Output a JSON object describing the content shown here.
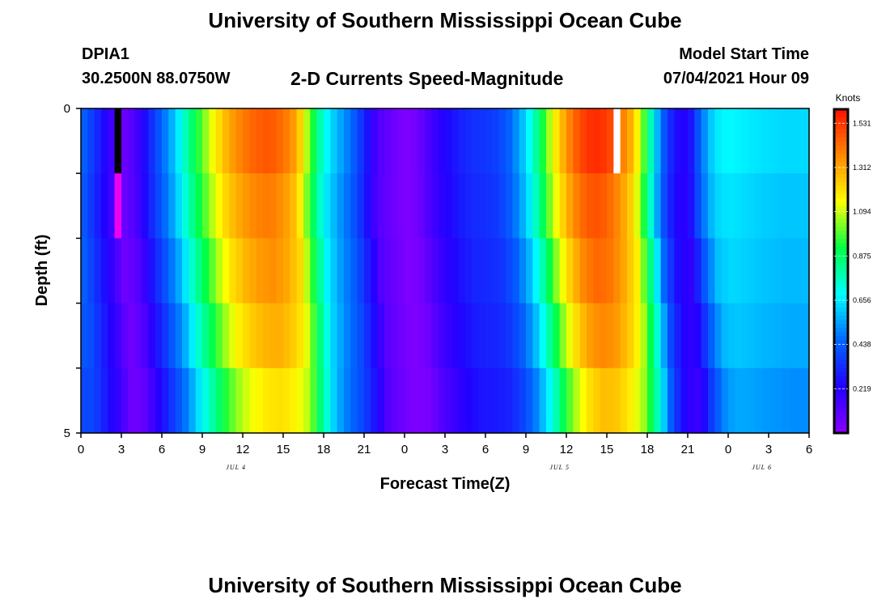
{
  "header": {
    "title": "University of Southern Mississippi Ocean Cube",
    "station": "DPIA1",
    "coordinates": "30.2500N  88.0750W",
    "subtitle": "2-D Currents Speed-Magnitude",
    "model_start_label": "Model Start Time",
    "model_start_value": "07/04/2021 Hour 09"
  },
  "footer": {
    "title": "University of Southern Mississippi Ocean Cube"
  },
  "chart_data": {
    "type": "heatmap",
    "title": "2-D Currents Speed-Magnitude",
    "xlabel": "Forecast Time(Z)",
    "ylabel": "Depth (ft)",
    "y_tick_labels": [
      "0",
      "5"
    ],
    "ylim": [
      0,
      5
    ],
    "xlim_hours": [
      0,
      54
    ],
    "x_tick_labels": [
      "0",
      "3",
      "6",
      "9",
      "12",
      "15",
      "18",
      "21",
      "0",
      "3",
      "6",
      "9",
      "12",
      "15",
      "18",
      "21",
      "0",
      "3",
      "6"
    ],
    "date_labels": [
      {
        "text": "JUL 4",
        "hour": 11.5
      },
      {
        "text": "JUL 5",
        "hour": 35.5
      },
      {
        "text": "JUL 6",
        "hour": 50.5
      }
    ],
    "colorbar": {
      "label": "Knots",
      "min": 0,
      "max": 1.6,
      "ticks": [
        "1.531",
        "1.312",
        "1.094",
        "0.875",
        "0.656",
        "0.438",
        "0.219"
      ],
      "tick_values": [
        1.531,
        1.312,
        1.094,
        0.875,
        0.656,
        0.438,
        0.219
      ]
    },
    "depth_layers": 5,
    "hours_per_column": 0.5,
    "column_count": 108,
    "speed_profile_knots": [
      [
        0,
        0.45
      ],
      [
        2,
        0.2
      ],
      [
        3,
        0.05
      ],
      [
        4,
        0.12
      ],
      [
        5,
        0.28
      ],
      [
        6,
        0.43
      ],
      [
        7,
        0.58
      ],
      [
        8,
        0.78
      ],
      [
        9,
        0.95
      ],
      [
        10,
        1.12
      ],
      [
        11,
        1.25
      ],
      [
        12,
        1.33
      ],
      [
        13,
        1.38
      ],
      [
        14,
        1.4
      ],
      [
        15,
        1.35
      ],
      [
        16,
        1.25
      ],
      [
        17,
        0.95
      ],
      [
        18,
        0.68
      ],
      [
        19,
        0.55
      ],
      [
        20,
        0.45
      ],
      [
        21,
        0.3
      ],
      [
        22,
        0.12
      ],
      [
        24,
        0.02
      ],
      [
        25,
        0.05
      ],
      [
        26,
        0.15
      ],
      [
        27,
        0.22
      ],
      [
        28,
        0.28
      ],
      [
        29,
        0.32
      ],
      [
        30,
        0.33
      ],
      [
        31,
        0.36
      ],
      [
        32,
        0.45
      ],
      [
        33,
        0.6
      ],
      [
        34,
        0.82
      ],
      [
        35,
        1.08
      ],
      [
        36,
        1.28
      ],
      [
        37,
        1.42
      ],
      [
        38,
        1.48
      ],
      [
        39,
        1.45
      ],
      [
        40,
        1.35
      ],
      [
        41,
        1.2
      ],
      [
        42,
        0.85
      ],
      [
        43,
        0.45
      ],
      [
        44,
        0.25
      ],
      [
        45,
        0.2
      ],
      [
        46,
        0.45
      ],
      [
        47,
        0.62
      ],
      [
        48,
        0.65
      ],
      [
        50,
        0.62
      ],
      [
        52,
        0.6
      ],
      [
        54,
        0.6
      ]
    ],
    "depth_factors": [
      1.05,
      1.0,
      0.97,
      0.93,
      0.86
    ],
    "depth_shifts_hours": [
      0,
      0,
      0.3,
      0.6,
      0.9
    ],
    "missing_cells": [
      {
        "hour": 2.5,
        "depth_layer": 0,
        "color": "#000000"
      },
      {
        "hour": 2.5,
        "depth_layer": 1,
        "color": "#ee00ee"
      },
      {
        "hour": 39.5,
        "depth_layer": 0,
        "color": "#ffffff"
      }
    ],
    "colors": {
      "stops": [
        "#8800ff",
        "#2200ff",
        "#0066ff",
        "#00ffff",
        "#00ff44",
        "#ffff00",
        "#ff8800",
        "#ff1100"
      ]
    }
  }
}
